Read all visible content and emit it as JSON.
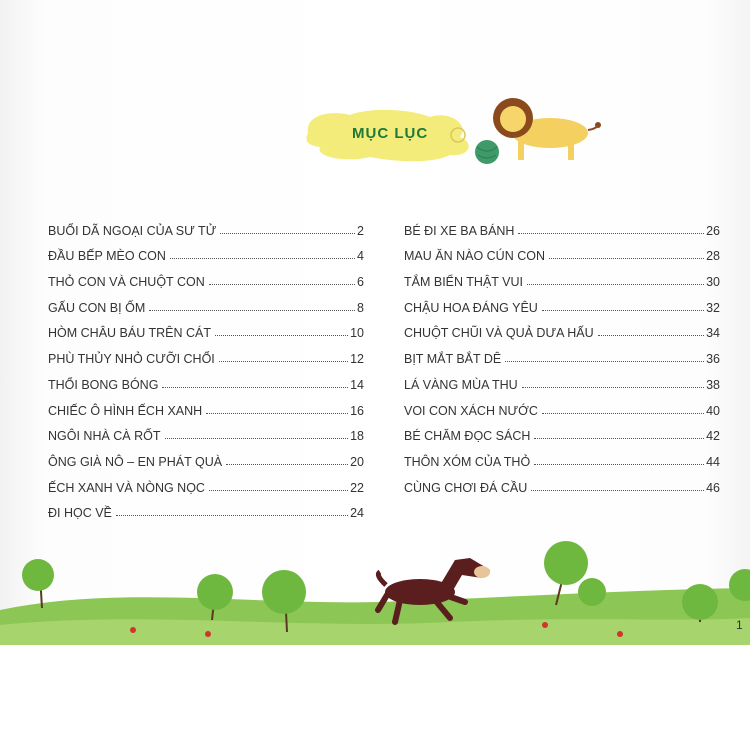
{
  "title": "MỤC LỤC",
  "page_number": "1",
  "colors": {
    "title": "#1f7a3a",
    "cloud": "#f3ec7a",
    "grass": "#8cc654"
  },
  "left_entries": [
    {
      "title": "BUỔI DÃ NGOẠI CỦA SƯ TỬ",
      "page": "2"
    },
    {
      "title": "ĐẦU BẾP MÈO CON",
      "page": "4"
    },
    {
      "title": "THỎ CON VÀ CHUỘT CON",
      "page": "6"
    },
    {
      "title": "GẤU CON BỊ ỐM",
      "page": "8"
    },
    {
      "title": "HÒM CHÂU BÁU TRÊN CÁT",
      "page": "10"
    },
    {
      "title": "PHÙ THỦY NHỎ CƯỠI CHỔI",
      "page": "12"
    },
    {
      "title": "THỔI BONG BÓNG",
      "page": "14"
    },
    {
      "title": "CHIẾC Ô HÌNH ẾCH XANH",
      "page": "16"
    },
    {
      "title": "NGÔI NHÀ CÀ RỐT",
      "page": "18"
    },
    {
      "title": "ÔNG GIÀ NÔ – EN PHÁT QUÀ",
      "page": "20"
    },
    {
      "title": "ẾCH XANH VÀ NÒNG NỌC",
      "page": "22"
    },
    {
      "title": "ĐI HỌC VỀ",
      "page": "24"
    }
  ],
  "right_entries": [
    {
      "title": "BÉ ĐI XE BA BÁNH",
      "page": "26"
    },
    {
      "title": "MAU ĂN NÀO CÚN CON",
      "page": "28"
    },
    {
      "title": "TẮM BIỂN THẬT VUI",
      "page": "30"
    },
    {
      "title": "CHẬU HOA ĐÁNG YÊU",
      "page": "32"
    },
    {
      "title": "CHUỘT CHŨI VÀ QUẢ DƯA HẤU",
      "page": "34"
    },
    {
      "title": "BỊT MẮT BẮT DÊ",
      "page": "36"
    },
    {
      "title": "LÁ VÀNG MÙA THU",
      "page": "38"
    },
    {
      "title": "VOI CON XÁCH NƯỚC",
      "page": "40"
    },
    {
      "title": "BÉ CHĂM ĐỌC SÁCH",
      "page": "42"
    },
    {
      "title": "THÔN XÓM CỦA THỎ",
      "page": "44"
    },
    {
      "title": "CÙNG CHƠI ĐÁ CẦU",
      "page": "46"
    }
  ]
}
